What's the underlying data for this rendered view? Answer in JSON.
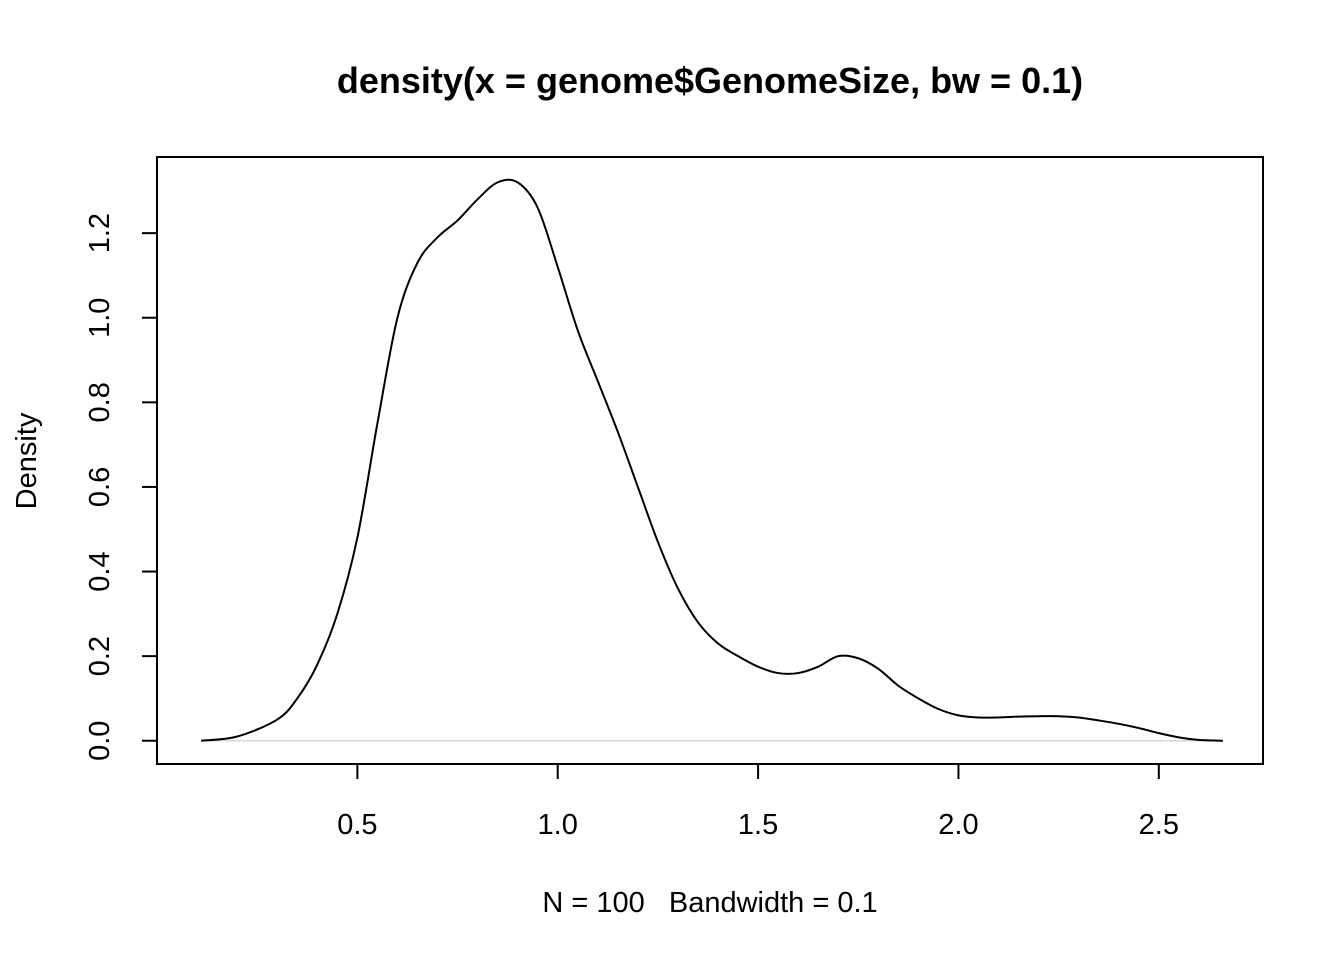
{
  "chart_data": {
    "type": "line",
    "title": "density(x = genome$GenomeSize, bw = 0.1)",
    "xlabel": "N = 100   Bandwidth = 0.1",
    "ylabel": "Density",
    "xlim": [
      0.0,
      2.76
    ],
    "ylim": [
      -0.055,
      1.38
    ],
    "x_ticks": [
      0.5,
      1.0,
      1.5,
      2.0,
      2.5
    ],
    "x_tick_labels": [
      "0.5",
      "1.0",
      "1.5",
      "2.0",
      "2.5"
    ],
    "y_ticks": [
      0.0,
      0.2,
      0.4,
      0.6,
      0.8,
      1.0,
      1.2
    ],
    "y_tick_labels": [
      "0.0",
      "0.2",
      "0.4",
      "0.6",
      "0.8",
      "1.0",
      "1.2"
    ],
    "baseline": 0.0,
    "grid": false,
    "series": [
      {
        "x": [
          0.11,
          0.2,
          0.3,
          0.35,
          0.4,
          0.45,
          0.5,
          0.55,
          0.6,
          0.65,
          0.7,
          0.75,
          0.8,
          0.85,
          0.9,
          0.95,
          1.0,
          1.05,
          1.1,
          1.15,
          1.2,
          1.25,
          1.3,
          1.35,
          1.4,
          1.45,
          1.5,
          1.55,
          1.6,
          1.65,
          1.7,
          1.75,
          1.8,
          1.85,
          1.9,
          1.95,
          2.0,
          2.05,
          2.1,
          2.15,
          2.2,
          2.25,
          2.3,
          2.35,
          2.4,
          2.45,
          2.5,
          2.55,
          2.6,
          2.66
        ],
        "y": [
          0.0,
          0.01,
          0.05,
          0.1,
          0.18,
          0.3,
          0.48,
          0.75,
          1.0,
          1.13,
          1.19,
          1.23,
          1.28,
          1.32,
          1.32,
          1.26,
          1.12,
          0.97,
          0.85,
          0.73,
          0.6,
          0.47,
          0.36,
          0.28,
          0.23,
          0.2,
          0.175,
          0.16,
          0.16,
          0.175,
          0.2,
          0.195,
          0.17,
          0.13,
          0.1,
          0.075,
          0.06,
          0.055,
          0.055,
          0.057,
          0.058,
          0.058,
          0.055,
          0.048,
          0.04,
          0.03,
          0.018,
          0.008,
          0.002,
          0.0
        ],
        "color": "#000000"
      }
    ]
  }
}
